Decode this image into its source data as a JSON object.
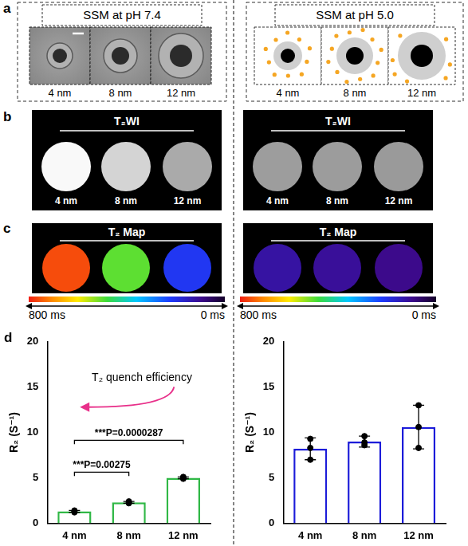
{
  "panel_labels": [
    "a",
    "b",
    "c",
    "d"
  ],
  "conditions": [
    {
      "title": "SSM at pH 7.4",
      "sizes": [
        "4 nm",
        "8 nm",
        "12 nm"
      ],
      "t2wi_title": "T₂WI",
      "t2_map_title": "T₂ Map",
      "t2_ms": [
        760,
        500,
        210
      ]
    },
    {
      "title": "SSM at pH 5.0",
      "sizes": [
        "4 nm",
        "8 nm",
        "12 nm"
      ],
      "t2wi_title": "T₂WI",
      "t2_map_title": "T₂ Map",
      "t2_ms": [
        120,
        110,
        95
      ]
    }
  ],
  "colorbar": {
    "range": [
      0,
      800
    ],
    "ticks": [
      {
        "value": 800,
        "label": "800 ms"
      },
      {
        "value": 0,
        "label": "0 ms"
      }
    ]
  },
  "chart_data": [
    {
      "type": "bar",
      "y_label": "R₂ (S⁻¹)",
      "categories": [
        "4 nm",
        "8 nm",
        "12 nm"
      ],
      "values": [
        1.3,
        2.3,
        5.0
      ],
      "error": [
        0.1,
        0.1,
        0.1
      ],
      "points": [
        [
          1.2,
          1.3,
          1.4
        ],
        [
          2.2,
          2.3,
          2.4
        ],
        [
          4.9,
          5.0,
          5.1
        ]
      ],
      "color": "#30b846",
      "ylim": [
        0,
        20
      ],
      "yticks": [
        0,
        5,
        10,
        15,
        20
      ],
      "grid": false,
      "annotations": [
        {
          "text": "T₂ quench efficiency"
        }
      ],
      "significance": [
        {
          "from": "4 nm",
          "to": "8 nm",
          "label": "***P=0.00275"
        },
        {
          "from": "4 nm",
          "to": "12 nm",
          "label": "***P=0.0000287"
        }
      ]
    },
    {
      "type": "bar",
      "y_label": "R₂ (S⁻¹)",
      "categories": [
        "4 nm",
        "8 nm",
        "12 nm"
      ],
      "values": [
        8.2,
        9.0,
        10.6
      ],
      "error": [
        1.2,
        0.6,
        2.4
      ],
      "points": [
        [
          9.3,
          8.3,
          7.0
        ],
        [
          9.6,
          8.9,
          8.6
        ],
        [
          13.0,
          10.6,
          8.3
        ]
      ],
      "color": "#1c1cd9",
      "ylim": [
        0,
        20
      ],
      "yticks": [
        0,
        5,
        10,
        15,
        20
      ],
      "grid": false
    }
  ]
}
